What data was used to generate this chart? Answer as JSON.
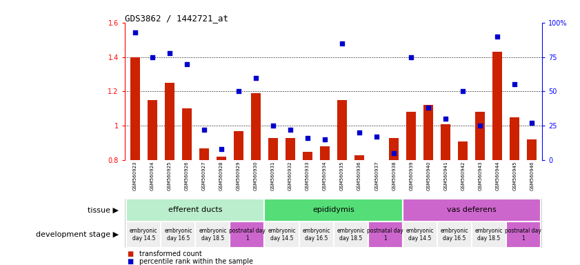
{
  "title": "GDS3862 / 1442721_at",
  "samples": [
    "GSM560923",
    "GSM560924",
    "GSM560925",
    "GSM560926",
    "GSM560927",
    "GSM560928",
    "GSM560929",
    "GSM560930",
    "GSM560931",
    "GSM560932",
    "GSM560933",
    "GSM560934",
    "GSM560935",
    "GSM560936",
    "GSM560937",
    "GSM560938",
    "GSM560939",
    "GSM560940",
    "GSM560941",
    "GSM560942",
    "GSM560943",
    "GSM560944",
    "GSM560945",
    "GSM560946"
  ],
  "bar_values": [
    1.4,
    1.15,
    1.25,
    1.1,
    0.87,
    0.82,
    0.97,
    1.19,
    0.93,
    0.93,
    0.85,
    0.88,
    1.15,
    0.83,
    0.8,
    0.93,
    1.08,
    1.12,
    1.01,
    0.91,
    1.08,
    1.43,
    1.05,
    0.92
  ],
  "percentile_values": [
    93,
    75,
    78,
    70,
    22,
    8,
    50,
    60,
    25,
    22,
    16,
    15,
    85,
    20,
    17,
    5,
    75,
    38,
    30,
    50,
    25,
    90,
    55,
    27
  ],
  "bar_color": "#cc2200",
  "point_color": "#0000cc",
  "ylim_left": [
    0.8,
    1.6
  ],
  "ylim_right": [
    0,
    100
  ],
  "yticks_left": [
    0.8,
    1.0,
    1.2,
    1.4,
    1.6
  ],
  "ytick_labels_left": [
    "0.8",
    "1",
    "1.2",
    "1.4",
    "1.6"
  ],
  "yticks_right": [
    0,
    25,
    50,
    75,
    100
  ],
  "ytick_labels_right": [
    "0",
    "25",
    "50",
    "75",
    "100%"
  ],
  "tissues": [
    {
      "label": "efferent ducts",
      "start": 0,
      "end": 7,
      "color": "#bbeecc"
    },
    {
      "label": "epididymis",
      "start": 8,
      "end": 15,
      "color": "#55dd77"
    },
    {
      "label": "vas deferens",
      "start": 16,
      "end": 23,
      "color": "#cc66cc"
    }
  ],
  "dev_stage_labels": [
    "embryonic\nday 14.5",
    "embryonic\nday 16.5",
    "embryonic\nday 18.5",
    "postnatal day\n1"
  ],
  "dev_stage_colors": [
    "#eeeeee",
    "#eeeeee",
    "#eeeeee",
    "#cc66cc"
  ],
  "legend_red": "transformed count",
  "legend_blue": "percentile rank within the sample",
  "tissue_label": "tissue",
  "dev_label": "development stage"
}
